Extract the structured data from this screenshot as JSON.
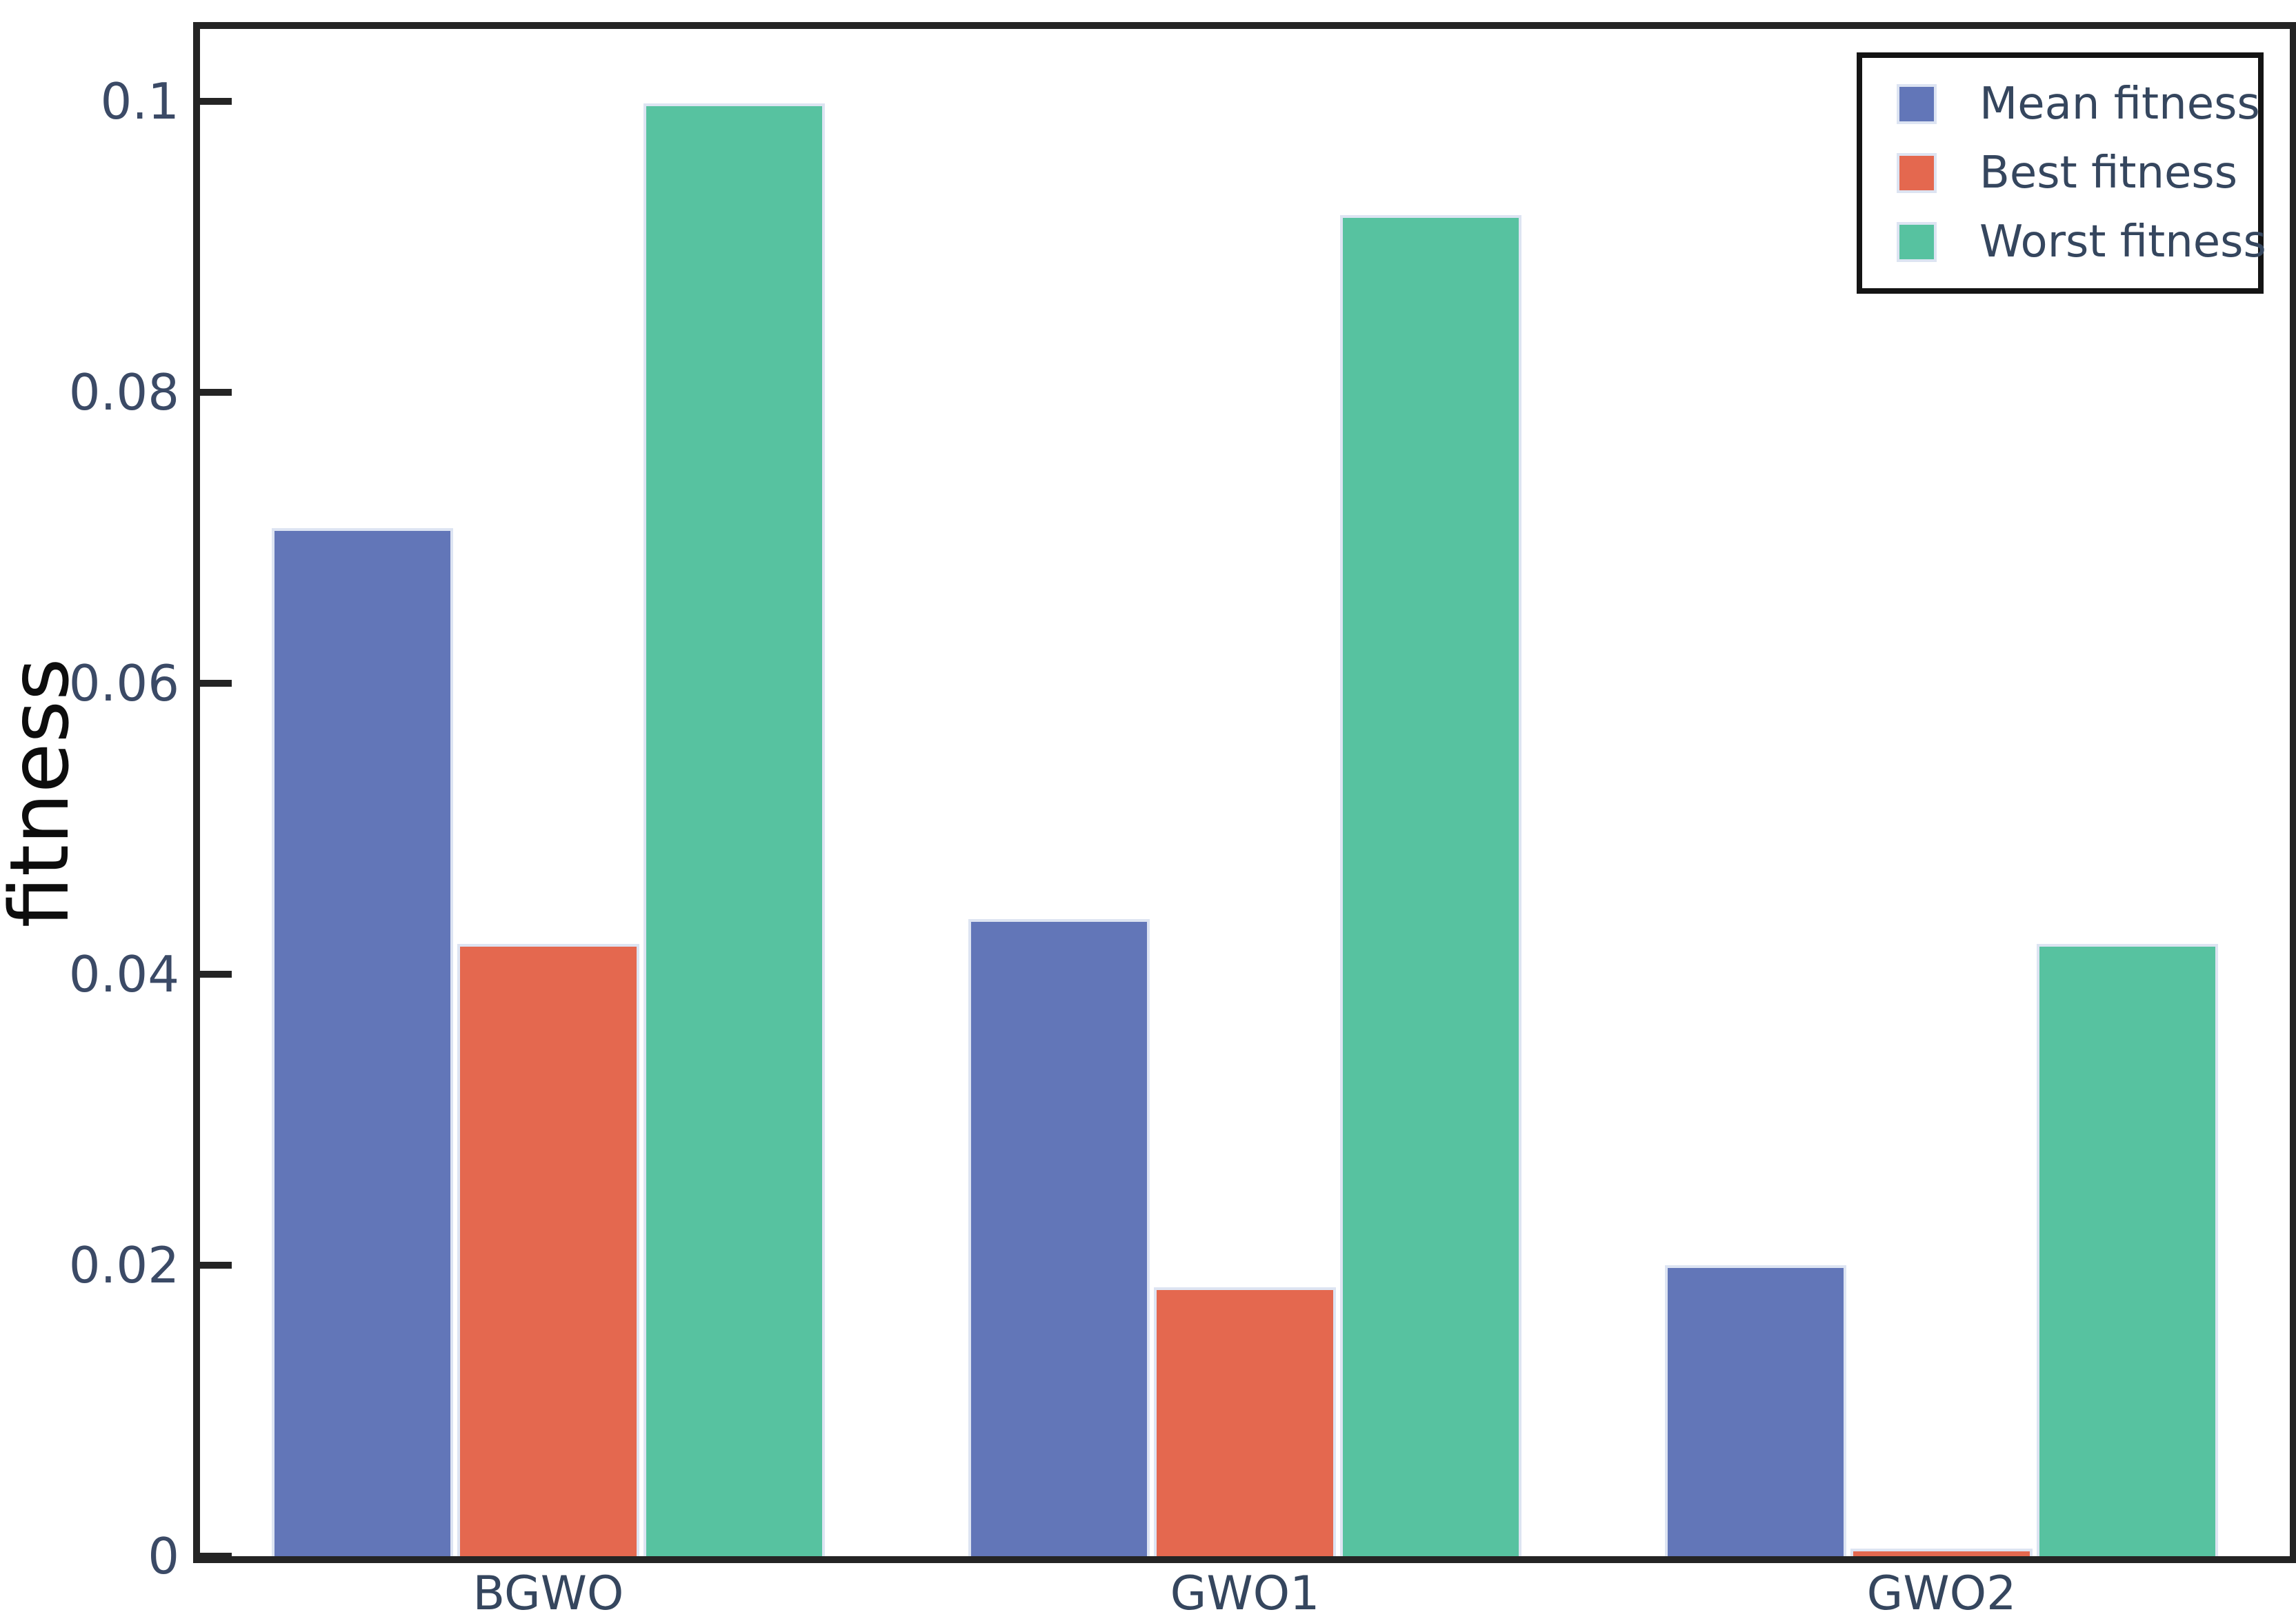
{
  "figure": {
    "background": "#ffffff",
    "spine_color": "#242424",
    "tick_label_color": "#3b4a66",
    "axis_label_color": "#0d0d0d",
    "bar_edge_color": "#dde4f2",
    "legend_border_color": "#141414"
  },
  "chart_data": {
    "type": "bar",
    "categories": [
      "BGWO",
      "GWO1",
      "GWO2"
    ],
    "series": [
      {
        "name": "Mean fitness",
        "color": "#6276b8",
        "values": [
          0.0707,
          0.0438,
          0.02
        ]
      },
      {
        "name": "Best fitness",
        "color": "#e4684f",
        "values": [
          0.0421,
          0.0185,
          0.0005
        ]
      },
      {
        "name": "Worst fitness",
        "color": "#57c2a0",
        "values": [
          0.0999,
          0.0922,
          0.0421
        ]
      }
    ],
    "title": "",
    "xlabel": "",
    "ylabel": "fitness",
    "ylim": [
      0,
      0.105
    ],
    "yticks": [
      0,
      0.02,
      0.04,
      0.06,
      0.08,
      0.1
    ],
    "ytick_labels": [
      "0",
      "0.02",
      "0.04",
      "0.06",
      "0.08",
      "0.1"
    ],
    "grid": false,
    "legend_position": "upper right",
    "legend_entries": [
      "Mean fitness",
      "Best fitness",
      "Worst fitness"
    ],
    "bar_group_width_fraction": 0.8
  }
}
